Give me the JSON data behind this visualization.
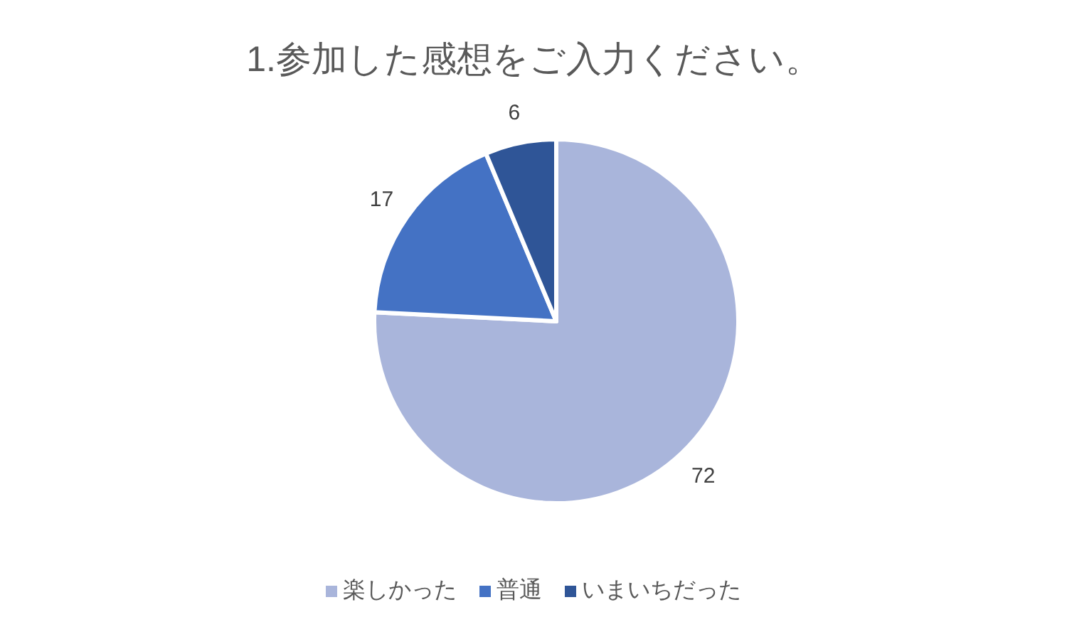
{
  "chart_data": {
    "type": "pie",
    "title": "1.参加した感想をご入力ください。",
    "categories": [
      "楽しかった",
      "普通",
      "いまいちだった"
    ],
    "values": [
      72,
      17,
      6
    ],
    "colors": [
      "#a9b5db",
      "#4472c4",
      "#2f5597"
    ],
    "data_labels": true,
    "legend": "bottom"
  }
}
